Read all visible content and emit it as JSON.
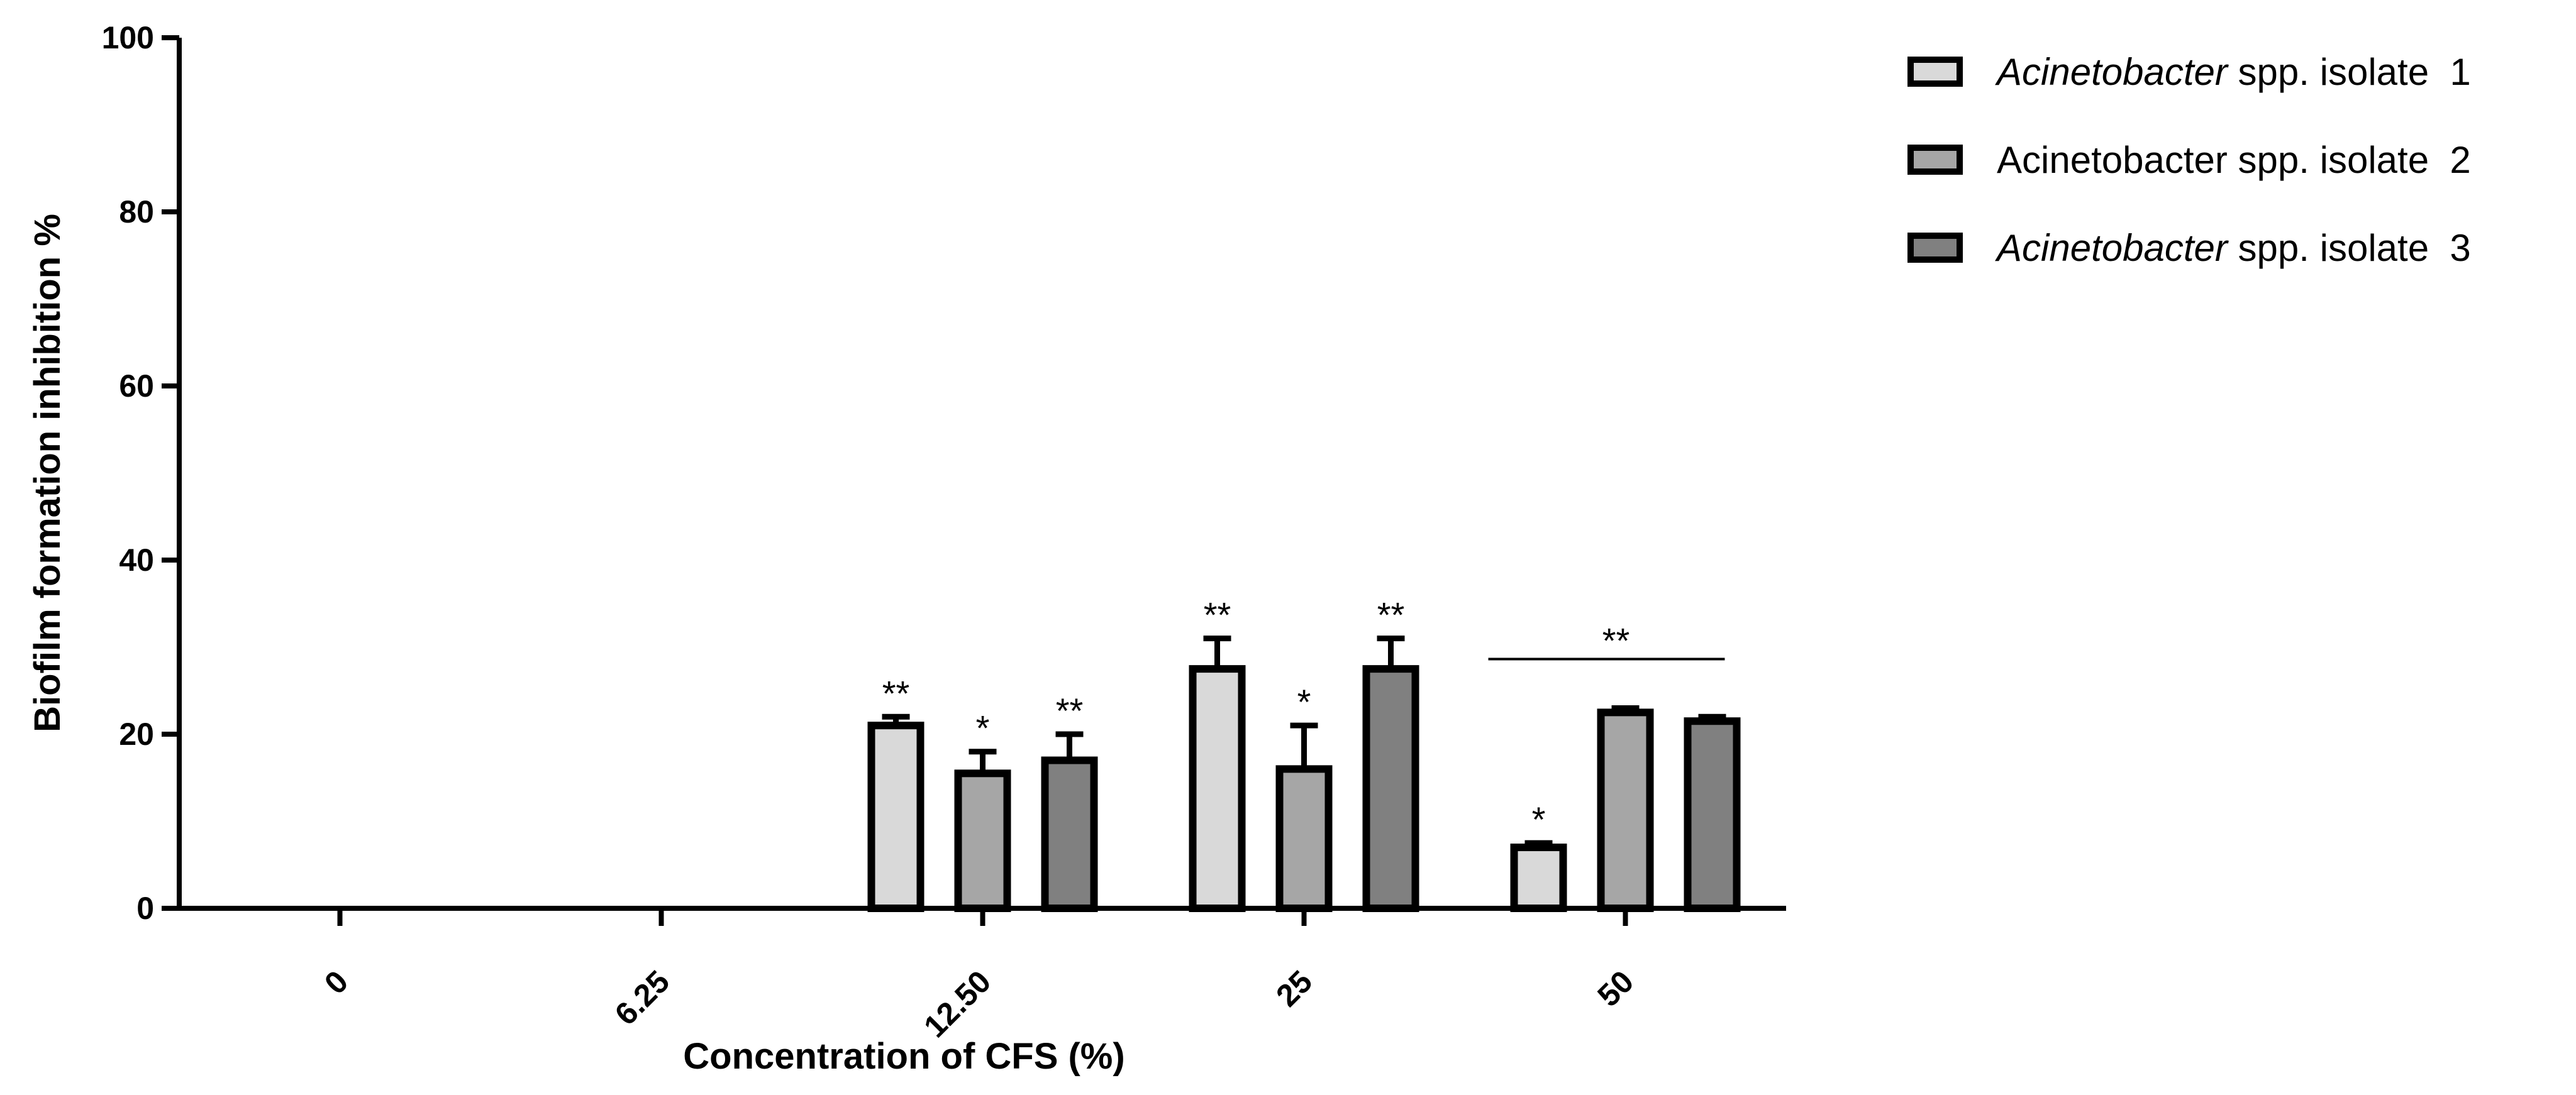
{
  "chart_data": {
    "type": "bar",
    "title": "",
    "xlabel": "Concentration of CFS (%)",
    "ylabel": "Biofilm formation inhibition %",
    "ylim": [
      0,
      100
    ],
    "yticks": [
      "0",
      "20",
      "40",
      "60",
      "80",
      "100"
    ],
    "categories": [
      "0",
      "6.25",
      "12.50",
      "25",
      "50"
    ],
    "series": [
      {
        "name": "Acinetobacter spp. isolate  1",
        "name_italic": "Acinetobacter",
        "name_rest": " spp. isolate  1",
        "italic": true,
        "color": "#d9d9d9",
        "values": [
          0,
          0,
          21,
          27.5,
          7
        ],
        "errors": [
          0,
          0,
          1,
          3.5,
          0.5
        ],
        "significance": [
          "",
          "",
          "**",
          "**",
          "*"
        ]
      },
      {
        "name": "Acinetobacter spp. isolate  2",
        "name_italic": "",
        "name_rest": "Acinetobacter spp. isolate  2",
        "italic": false,
        "color": "#a6a6a6",
        "values": [
          0,
          0,
          15.5,
          16,
          22.5
        ],
        "errors": [
          0,
          0,
          2.5,
          5,
          0.5
        ],
        "significance": [
          "",
          "",
          "*",
          "*",
          ""
        ]
      },
      {
        "name": "Acinetobacter spp. isolate  3",
        "name_italic": "Acinetobacter",
        "name_rest": " spp. isolate  3",
        "italic": true,
        "color": "#808080",
        "values": [
          0,
          0,
          17,
          27.5,
          21.5
        ],
        "errors": [
          0,
          0,
          3,
          3.5,
          0.5
        ],
        "significance": [
          "",
          "",
          "**",
          "**",
          ""
        ]
      }
    ],
    "group_annotations": [
      {
        "category": "50",
        "label": "**",
        "from_series": 0,
        "to_series": 2
      }
    ],
    "legend_position": "top-right"
  }
}
